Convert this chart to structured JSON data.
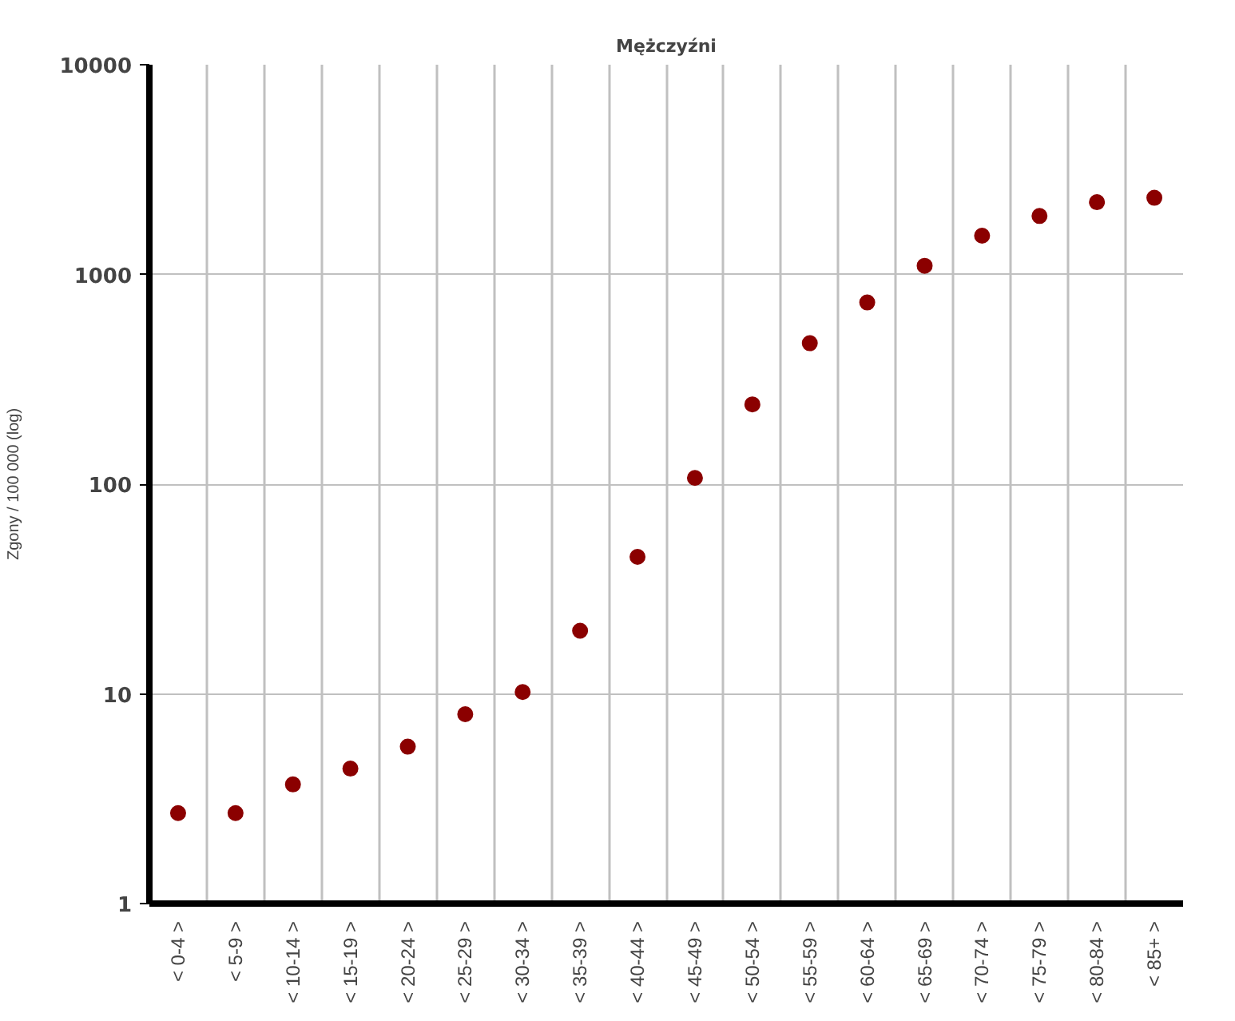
{
  "chart_data": {
    "type": "scatter",
    "title": "Mężczyźni",
    "ylabel": "Zgony / 100 000 (log)",
    "categories": [
      "< 0-4 >",
      "< 5-9 >",
      "< 10-14 >",
      "< 15-19 >",
      "< 20-24 >",
      "< 25-29 >",
      "< 30-34 >",
      "< 35-39 >",
      "< 40-44 >",
      "< 45-49 >",
      "< 50-54 >",
      "< 55-59 >",
      "< 60-64 >",
      "< 65-69 >",
      "< 70-74 >",
      "< 75-79 >",
      "< 80-84 >",
      "< 85+ >"
    ],
    "series": [
      {
        "color": "#8b0000",
        "values": [
          2.7,
          2.7,
          3.7,
          4.4,
          5.6,
          8,
          10.2,
          20,
          45,
          107,
          240,
          470,
          735,
          1100,
          1530,
          1900,
          2210,
          2320
        ]
      }
    ],
    "ylim": [
      1,
      10000
    ],
    "yticks": [
      1,
      10,
      100,
      1000,
      10000
    ],
    "log": true,
    "grid": true,
    "marker": "circle"
  }
}
